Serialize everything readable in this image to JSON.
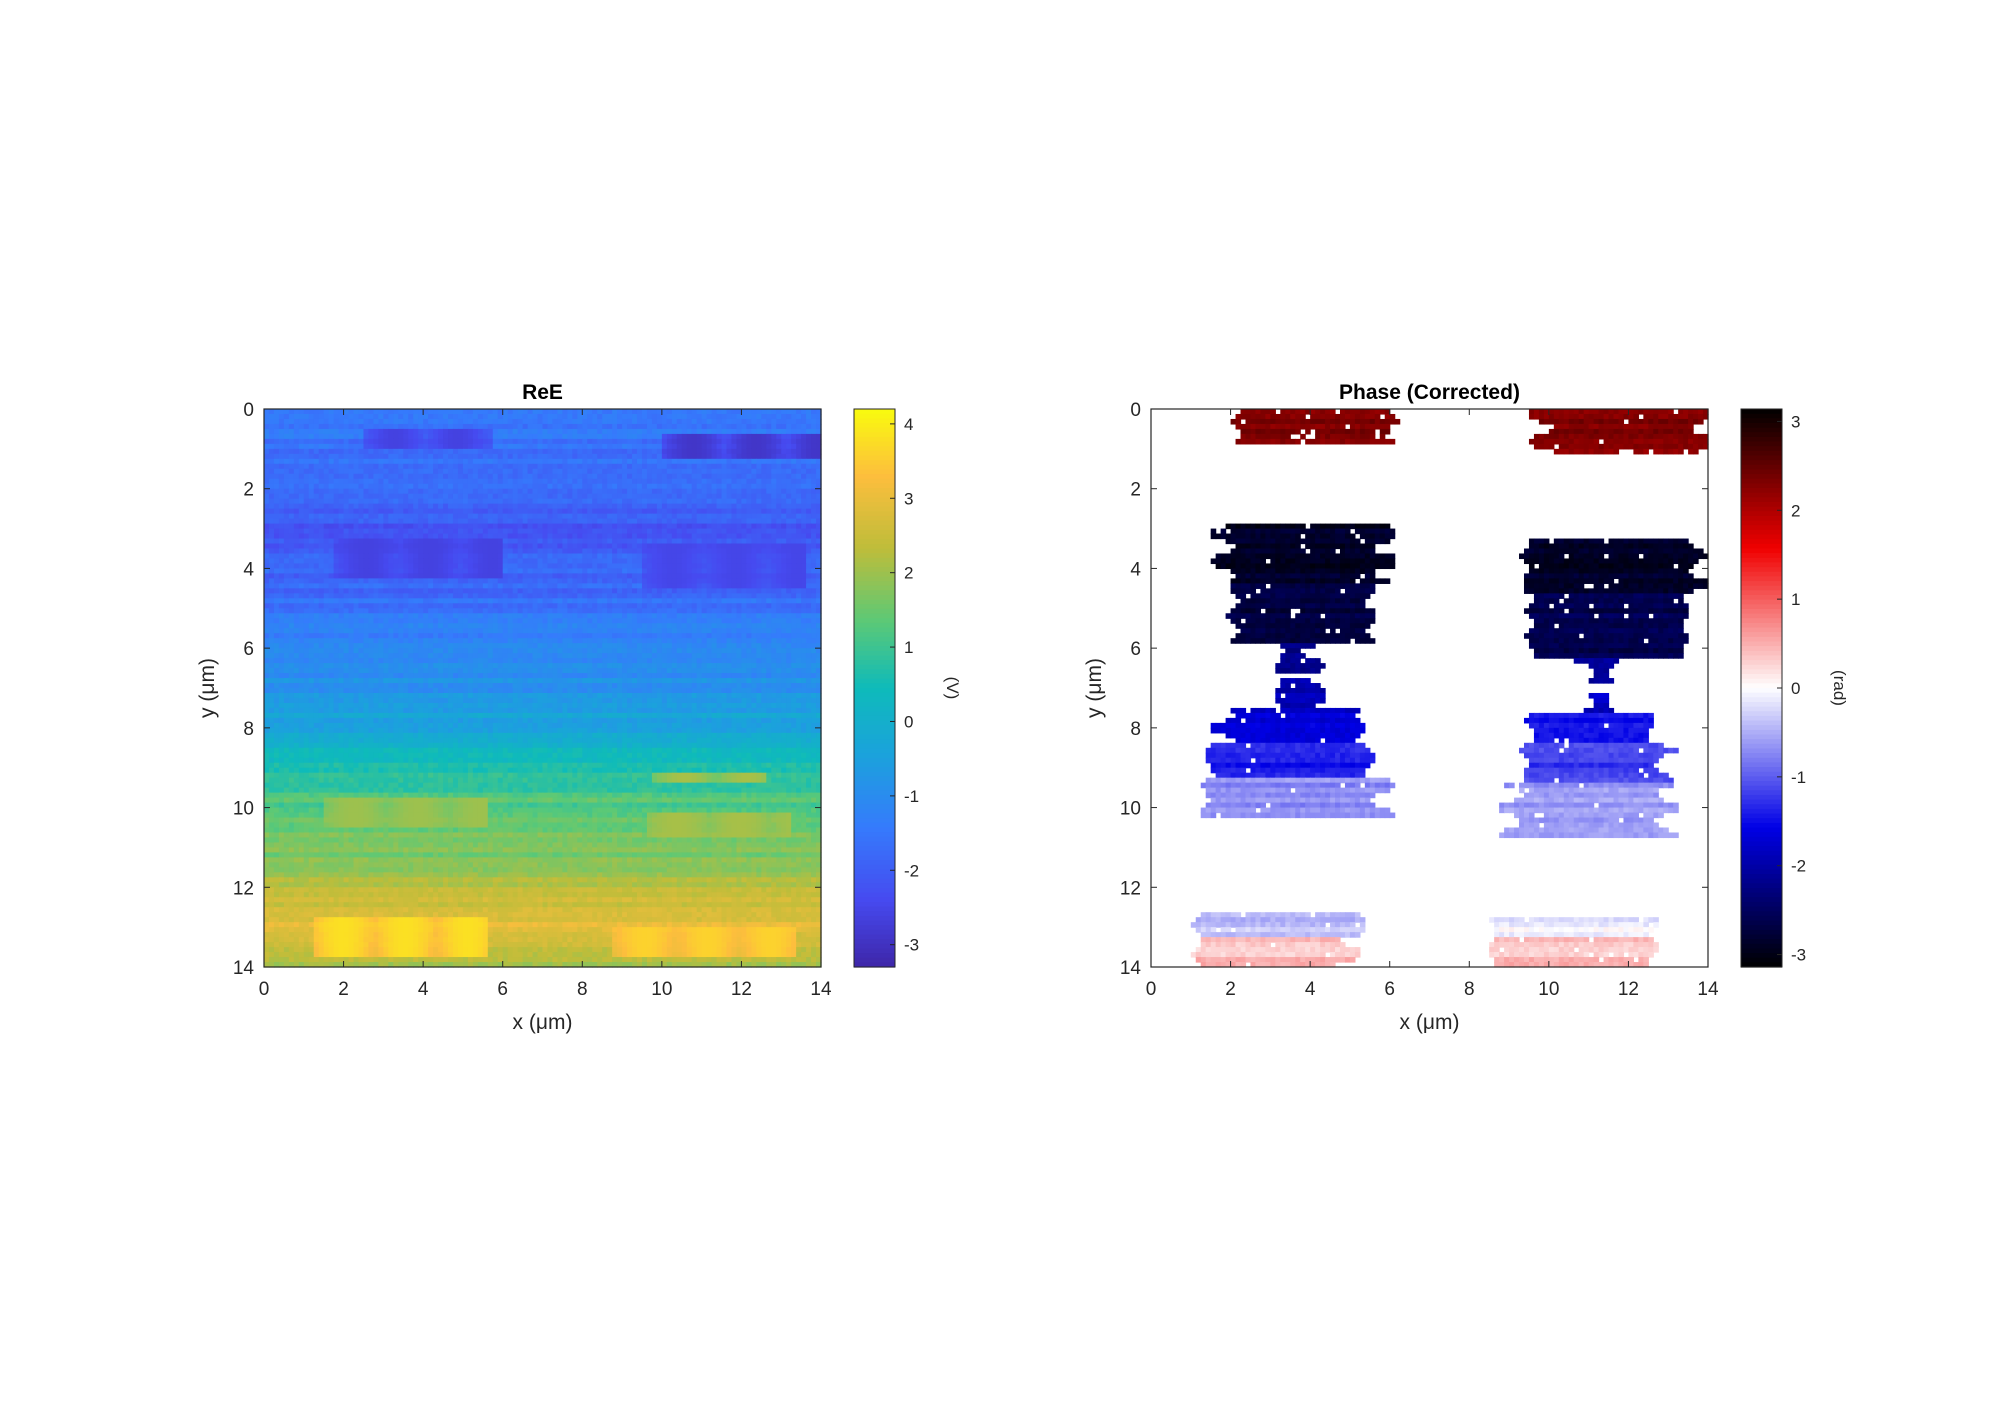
{
  "chart_data": [
    {
      "type": "heatmap",
      "title": "ReE",
      "xlabel": "x (μm)",
      "ylabel": "y (μm)",
      "xlim": [
        0,
        14
      ],
      "ylim": [
        0,
        14
      ],
      "y_reversed": true,
      "xticks": [
        "0",
        "2",
        "4",
        "6",
        "8",
        "10",
        "12",
        "14"
      ],
      "yticks": [
        "0",
        "2",
        "4",
        "6",
        "8",
        "10",
        "12",
        "14"
      ],
      "colorbar": {
        "label": "(V)",
        "colormap": "parula",
        "range": [
          -3.3,
          4.2
        ],
        "ticks": [
          "-3",
          "-2",
          "-1",
          "0",
          "1",
          "2",
          "3",
          "4"
        ]
      },
      "value_profile_by_y": [
        {
          "y": 0,
          "v": -1.3
        },
        {
          "y": 1,
          "v": -1.6
        },
        {
          "y": 2,
          "v": -1.7
        },
        {
          "y": 3,
          "v": -2.1
        },
        {
          "y": 4,
          "v": -1.9
        },
        {
          "y": 5,
          "v": -1.6
        },
        {
          "y": 6,
          "v": -1.1
        },
        {
          "y": 7,
          "v": -0.8
        },
        {
          "y": 8,
          "v": -0.3
        },
        {
          "y": 9,
          "v": 0.7
        },
        {
          "y": 10,
          "v": 1.3
        },
        {
          "y": 11,
          "v": 1.6
        },
        {
          "y": 12,
          "v": 2.2
        },
        {
          "y": 13,
          "v": 3.0
        },
        {
          "y": 14,
          "v": 1.9
        }
      ],
      "features": [
        {
          "kind": "dark",
          "x": [
            2.5,
            5.8
          ],
          "y": [
            0.5,
            1.0
          ],
          "v": -2.6
        },
        {
          "kind": "dark",
          "x": [
            10.0,
            14.0
          ],
          "y": [
            0.6,
            1.2
          ],
          "v": -2.9
        },
        {
          "kind": "dark",
          "x": [
            1.8,
            6.0
          ],
          "y": [
            3.2,
            4.3
          ],
          "v": -2.6
        },
        {
          "kind": "dark",
          "x": [
            9.5,
            13.6
          ],
          "y": [
            3.4,
            4.5
          ],
          "v": -2.5
        },
        {
          "kind": "bright",
          "x": [
            9.8,
            12.6
          ],
          "y": [
            9.1,
            9.4
          ],
          "v": 2.1
        },
        {
          "kind": "bright",
          "x": [
            1.5,
            5.6
          ],
          "y": [
            9.7,
            10.5
          ],
          "v": 2.0
        },
        {
          "kind": "bright",
          "x": [
            9.6,
            13.2
          ],
          "y": [
            10.1,
            10.8
          ],
          "v": 2.1
        },
        {
          "kind": "bright",
          "x": [
            1.2,
            5.6
          ],
          "y": [
            12.8,
            13.7
          ],
          "v": 3.8
        },
        {
          "kind": "bright",
          "x": [
            8.8,
            13.4
          ],
          "y": [
            13.0,
            13.7
          ],
          "v": 3.6
        }
      ]
    },
    {
      "type": "heatmap",
      "title": "Phase (Corrected)",
      "xlabel": "x (μm)",
      "ylabel": "y (μm)",
      "xlim": [
        0,
        14
      ],
      "ylim": [
        0,
        14
      ],
      "y_reversed": true,
      "xticks": [
        "0",
        "2",
        "4",
        "6",
        "8",
        "10",
        "12",
        "14"
      ],
      "yticks": [
        "0",
        "2",
        "4",
        "6",
        "8",
        "10",
        "12",
        "14"
      ],
      "colorbar": {
        "label": "(rad)",
        "colormap": "black-blue-white-red-black",
        "range": [
          -3.14,
          3.14
        ],
        "ticks": [
          "-3",
          "-2",
          "-1",
          "0",
          "1",
          "2",
          "3"
        ]
      },
      "regions": [
        {
          "x": [
            2.1,
            6.0
          ],
          "y": [
            0.0,
            0.9
          ],
          "v": 2.3
        },
        {
          "x": [
            9.8,
            13.9
          ],
          "y": [
            0.0,
            1.1
          ],
          "v": 2.3
        },
        {
          "x": [
            1.8,
            5.9
          ],
          "y": [
            2.9,
            4.4
          ],
          "v": -2.9
        },
        {
          "x": [
            2.0,
            5.6
          ],
          "y": [
            4.4,
            5.9
          ],
          "v": -2.7
        },
        {
          "x": [
            3.3,
            4.1
          ],
          "y": [
            5.9,
            6.6
          ],
          "v": -2.2
        },
        {
          "x": [
            9.4,
            13.8
          ],
          "y": [
            3.3,
            4.6
          ],
          "v": -2.9
        },
        {
          "x": [
            9.6,
            13.4
          ],
          "y": [
            4.6,
            6.2
          ],
          "v": -2.6
        },
        {
          "x": [
            10.9,
            11.6
          ],
          "y": [
            6.2,
            6.9
          ],
          "v": -2.1
        },
        {
          "x": [
            3.2,
            4.2
          ],
          "y": [
            6.8,
            7.5
          ],
          "v": -1.9
        },
        {
          "x": [
            1.8,
            5.2
          ],
          "y": [
            7.5,
            8.4
          ],
          "v": -1.7
        },
        {
          "x": [
            1.5,
            5.6
          ],
          "y": [
            8.4,
            9.3
          ],
          "v": -1.4
        },
        {
          "x": [
            1.4,
            5.8
          ],
          "y": [
            9.3,
            10.3
          ],
          "v": -0.7
        },
        {
          "x": [
            10.9,
            11.5
          ],
          "y": [
            7.1,
            7.6
          ],
          "v": -1.8
        },
        {
          "x": [
            9.6,
            12.6
          ],
          "y": [
            7.6,
            8.4
          ],
          "v": -1.5
        },
        {
          "x": [
            9.4,
            12.9
          ],
          "y": [
            8.4,
            9.4
          ],
          "v": -1.2
        },
        {
          "x": [
            9.0,
            13.0
          ],
          "y": [
            9.4,
            10.8
          ],
          "v": -0.6
        },
        {
          "x": [
            1.1,
            5.3
          ],
          "y": [
            12.6,
            13.2
          ],
          "v": -0.4
        },
        {
          "x": [
            1.1,
            5.0
          ],
          "y": [
            13.2,
            14.0
          ],
          "v": 0.4
        },
        {
          "x": [
            8.6,
            12.7
          ],
          "y": [
            12.8,
            13.3
          ],
          "v": -0.1
        },
        {
          "x": [
            8.6,
            12.7
          ],
          "y": [
            13.3,
            14.0
          ],
          "v": 0.4
        }
      ]
    }
  ]
}
